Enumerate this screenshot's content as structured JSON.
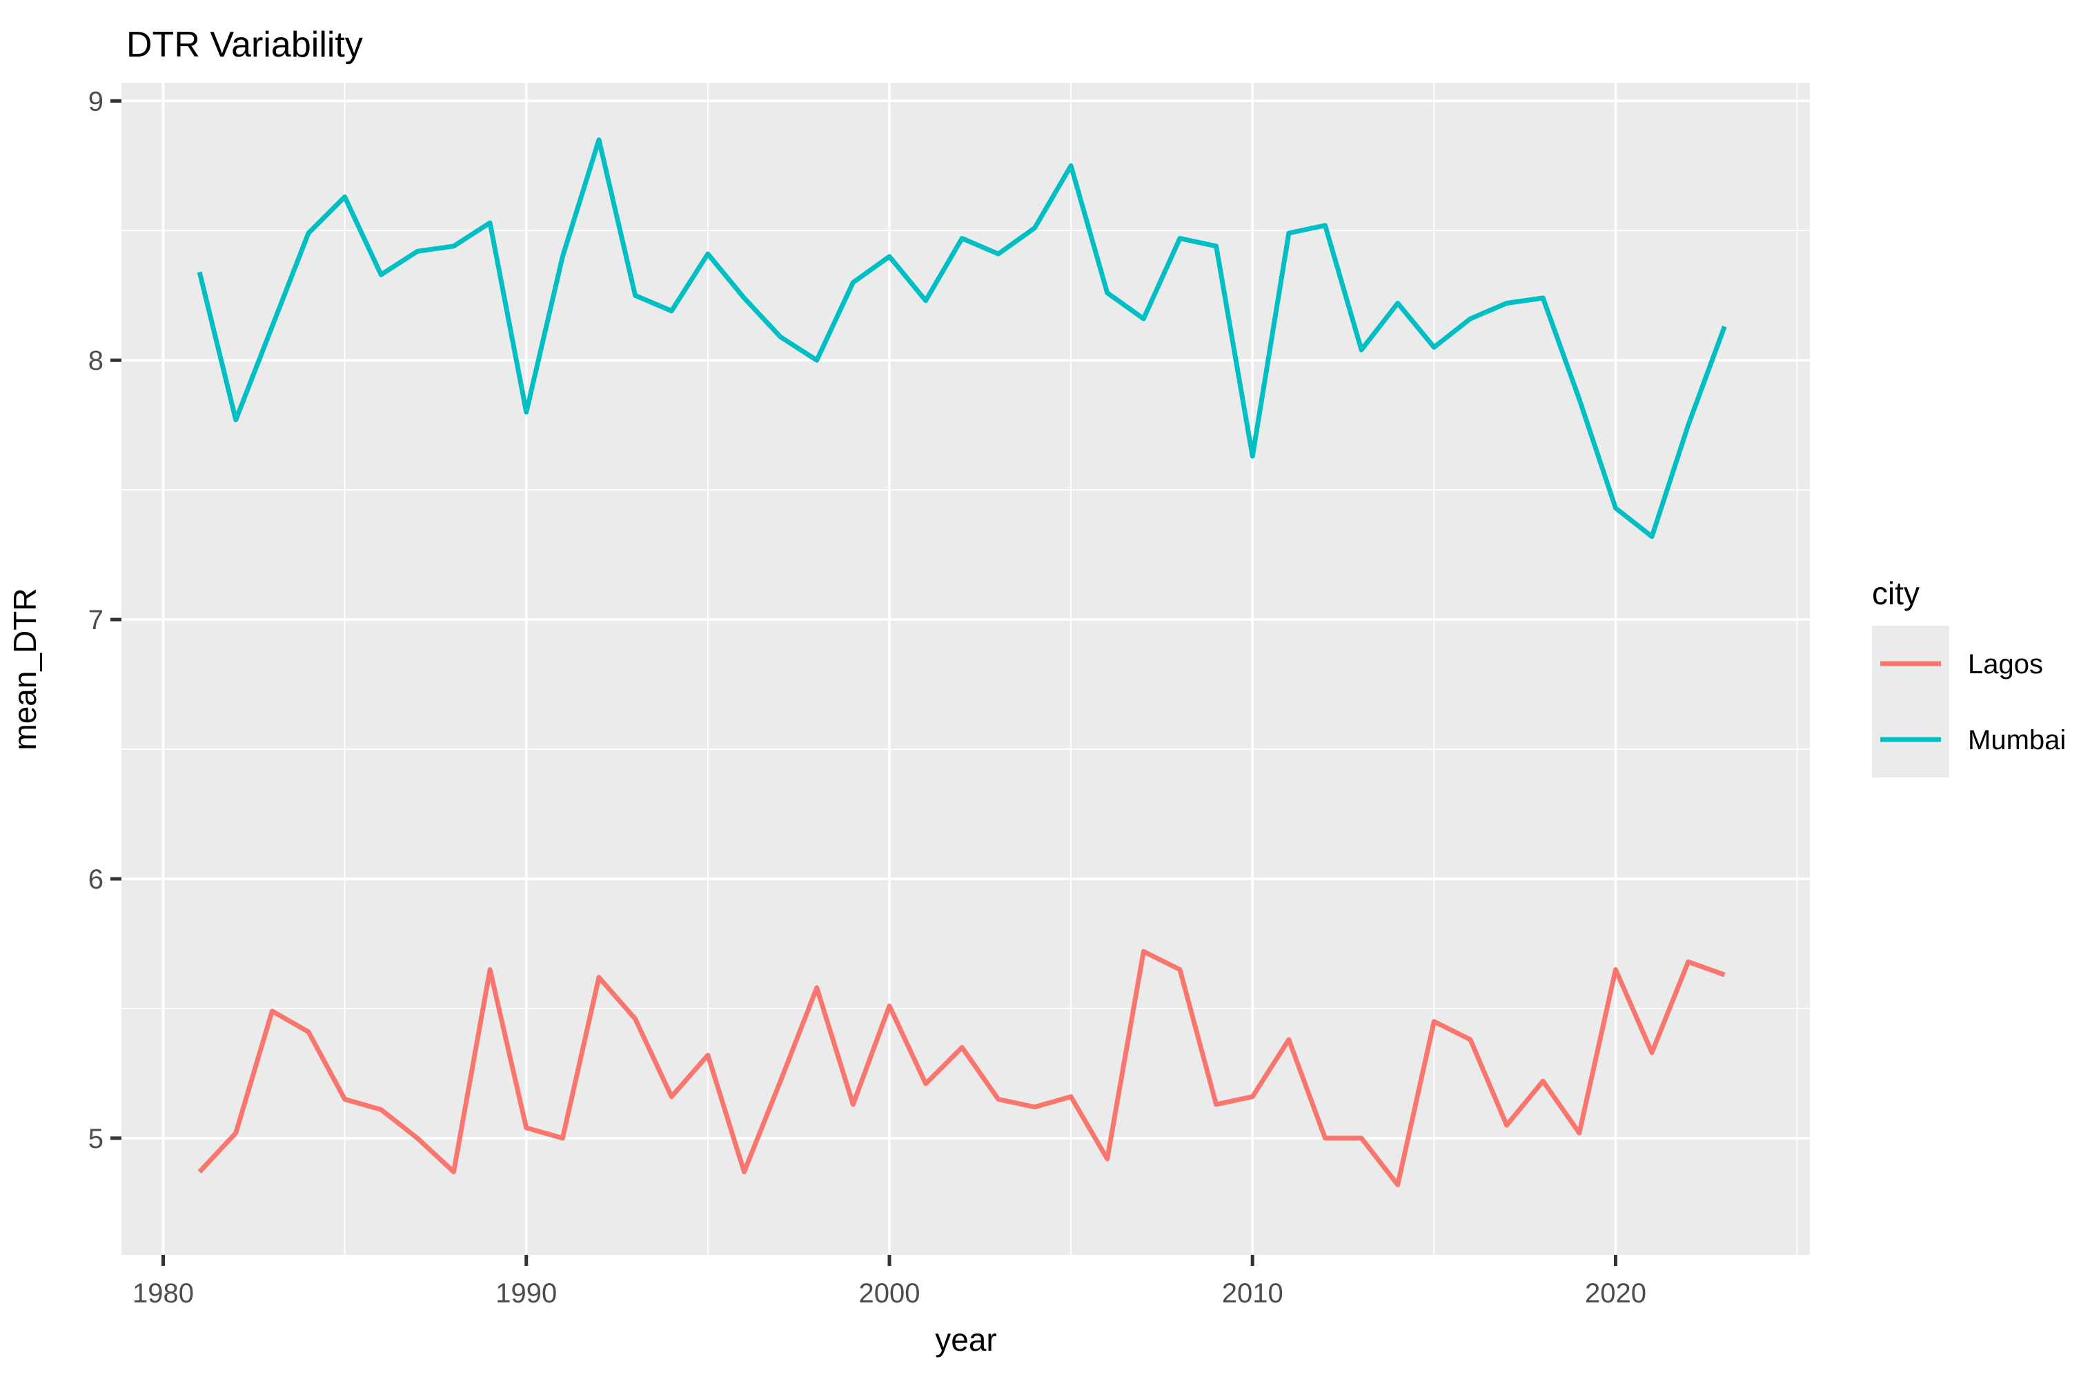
{
  "page": {
    "background": "#FFFFFF"
  },
  "chart_data": {
    "type": "line",
    "title": "DTR Variability",
    "xlabel": "year",
    "ylabel": "mean_DTR",
    "x": [
      1981,
      1982,
      1983,
      1984,
      1985,
      1986,
      1987,
      1988,
      1989,
      1990,
      1991,
      1992,
      1993,
      1994,
      1995,
      1996,
      1997,
      1998,
      1999,
      2000,
      2001,
      2002,
      2003,
      2004,
      2005,
      2006,
      2007,
      2008,
      2009,
      2010,
      2011,
      2012,
      2013,
      2014,
      2015,
      2016,
      2017,
      2018,
      2019,
      2020,
      2021,
      2022,
      2023
    ],
    "series": [
      {
        "name": "Lagos",
        "color": "#F8766D",
        "values": [
          4.87,
          5.02,
          5.49,
          5.41,
          5.15,
          5.11,
          5.0,
          4.87,
          5.65,
          5.04,
          5.0,
          5.62,
          5.46,
          5.16,
          5.32,
          4.87,
          5.22,
          5.58,
          5.13,
          5.51,
          5.21,
          5.35,
          5.15,
          5.12,
          5.16,
          4.92,
          5.72,
          5.65,
          5.13,
          5.16,
          5.38,
          5.0,
          5.0,
          4.82,
          5.45,
          5.38,
          5.05,
          5.22,
          5.02,
          5.65,
          5.33,
          5.68,
          5.63
        ]
      },
      {
        "name": "Mumbai",
        "color": "#00BFC4",
        "values": [
          8.34,
          7.77,
          8.13,
          8.49,
          8.63,
          8.33,
          8.42,
          8.44,
          8.53,
          7.8,
          8.4,
          8.85,
          8.25,
          8.19,
          8.41,
          8.24,
          8.09,
          8.0,
          8.3,
          8.4,
          8.23,
          8.47,
          8.41,
          8.51,
          8.75,
          8.26,
          8.16,
          8.47,
          8.44,
          7.63,
          8.49,
          8.52,
          8.04,
          8.22,
          8.05,
          8.16,
          8.22,
          8.24,
          7.85,
          7.43,
          7.32,
          7.75,
          8.13
        ]
      }
    ],
    "axes": {
      "x_major_ticks": [
        1980,
        1990,
        2000,
        2010,
        2020
      ],
      "x_minor_ticks": [
        1985,
        1995,
        2005,
        2015,
        2025
      ],
      "y_major_ticks": [
        5,
        6,
        7,
        8,
        9
      ],
      "y_minor_ticks": [
        5.5,
        6.5,
        7.5,
        8.5
      ],
      "xlim": [
        1978.85,
        2025.35
      ],
      "ylim": [
        4.55,
        9.07
      ],
      "grid": "on"
    },
    "legend": {
      "title": "city",
      "position": "right",
      "entries": [
        "Lagos",
        "Mumbai"
      ]
    },
    "style": {
      "panel_bg": "#EBEBEB",
      "grid_color": "#FFFFFF",
      "tick_color": "#333333",
      "tick_label_color": "#4D4D4D",
      "legend_key_bg": "#EBEBEB",
      "line_width": 7
    }
  }
}
